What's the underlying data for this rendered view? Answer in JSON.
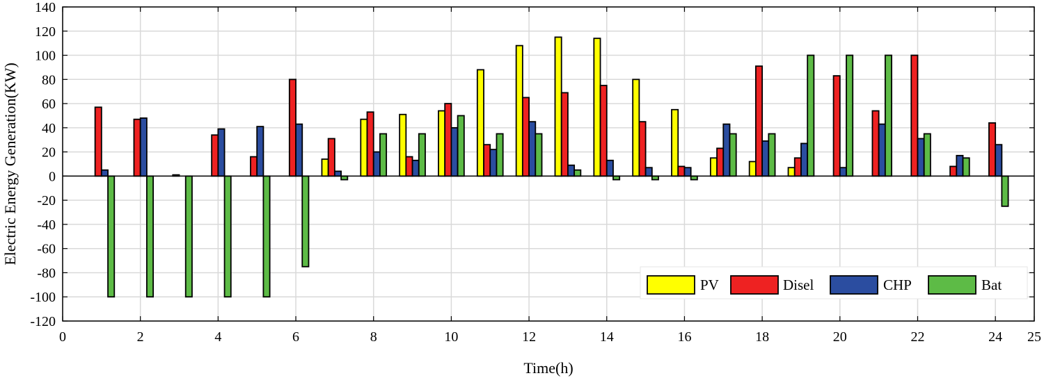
{
  "chart_data": {
    "type": "bar",
    "title": "",
    "xlabel": "Time(h)",
    "ylabel": "Electric Energy Generation(KW)",
    "xlim": [
      0,
      25
    ],
    "ylim": [
      -120,
      140
    ],
    "xticks": [
      0,
      2,
      4,
      6,
      8,
      10,
      12,
      14,
      16,
      18,
      20,
      22,
      24,
      25
    ],
    "yticks": [
      -120,
      -100,
      -80,
      -60,
      -40,
      -20,
      0,
      20,
      40,
      60,
      80,
      100,
      120,
      140
    ],
    "grid": true,
    "legend_position": "bottom-right",
    "x": [
      1,
      2,
      3,
      4,
      5,
      6,
      7,
      8,
      9,
      10,
      11,
      12,
      13,
      14,
      15,
      16,
      17,
      18,
      19,
      20,
      21,
      22,
      23,
      24
    ],
    "series": [
      {
        "name": "PV",
        "color": "#FFFF00",
        "values": [
          0,
          0,
          0,
          0,
          0,
          0,
          14,
          47,
          51,
          54,
          88,
          108,
          115,
          114,
          80,
          55,
          15,
          12,
          7,
          0,
          0,
          0,
          0,
          0
        ]
      },
      {
        "name": "Disel",
        "color": "#EE2222",
        "values": [
          57,
          47,
          1,
          34,
          16,
          80,
          31,
          53,
          16,
          60,
          26,
          65,
          69,
          75,
          45,
          8,
          23,
          91,
          15,
          83,
          54,
          100,
          8,
          44
        ]
      },
      {
        "name": "CHP",
        "color": "#2B4DA0",
        "values": [
          5,
          48,
          0,
          39,
          41,
          43,
          4,
          20,
          13,
          40,
          22,
          45,
          9,
          13,
          7,
          7,
          43,
          29,
          27,
          7,
          43,
          31,
          17,
          26
        ]
      },
      {
        "name": "Bat",
        "color": "#5DBB46",
        "values": [
          -100,
          -100,
          -100,
          -100,
          -100,
          -75,
          -3,
          35,
          35,
          50,
          35,
          35,
          5,
          -3,
          -3,
          -3,
          35,
          35,
          100,
          100,
          100,
          35,
          15,
          -25
        ]
      }
    ]
  }
}
